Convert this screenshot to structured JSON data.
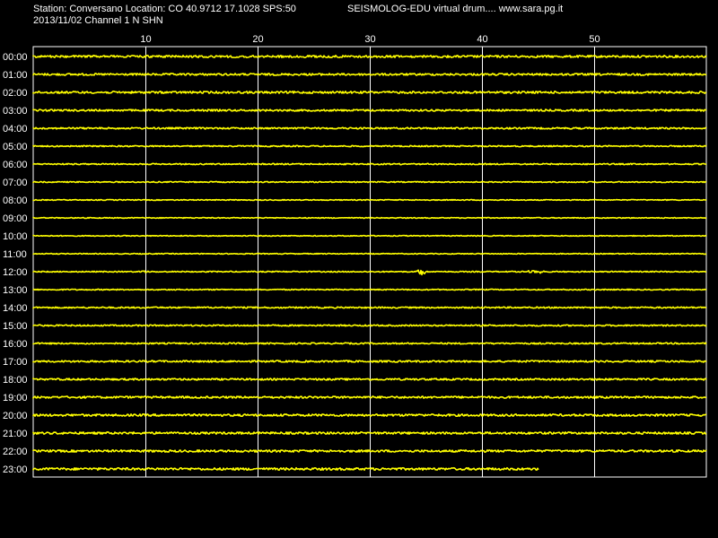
{
  "header": {
    "station_line": "Station: Conversano Location: CO 40.9712 17.1028 SPS:50",
    "date_channel_line": "2013/11/02  Channel 1 N SHN",
    "brand_line": "SEISMOLOG-EDU virtual drum.... www.sara.pg.it"
  },
  "colors": {
    "background": "#000000",
    "trace": "#ffff00",
    "gridline": "#ffffff",
    "text": "#ffffff"
  },
  "chart_data": {
    "type": "line",
    "title": "",
    "xlabel": "",
    "ylabel": "",
    "x_axis": {
      "unit": "minutes",
      "range": [
        0,
        60
      ],
      "ticks": [
        10,
        20,
        30,
        40,
        50
      ],
      "tick_labels": [
        "10",
        "20",
        "30",
        "40",
        "50"
      ]
    },
    "grid": true,
    "rows": [
      {
        "label": "00:00",
        "noise": 1.2,
        "end_minute": 60,
        "events": []
      },
      {
        "label": "01:00",
        "noise": 1.1,
        "end_minute": 60,
        "events": []
      },
      {
        "label": "02:00",
        "noise": 1.2,
        "end_minute": 60,
        "events": []
      },
      {
        "label": "03:00",
        "noise": 1.0,
        "end_minute": 60,
        "events": []
      },
      {
        "label": "04:00",
        "noise": 0.9,
        "end_minute": 60,
        "events": []
      },
      {
        "label": "05:00",
        "noise": 0.7,
        "end_minute": 60,
        "events": []
      },
      {
        "label": "06:00",
        "noise": 0.7,
        "end_minute": 60,
        "events": []
      },
      {
        "label": "07:00",
        "noise": 0.6,
        "end_minute": 60,
        "events": []
      },
      {
        "label": "08:00",
        "noise": 0.5,
        "end_minute": 60,
        "events": []
      },
      {
        "label": "09:00",
        "noise": 0.5,
        "end_minute": 60,
        "events": []
      },
      {
        "label": "10:00",
        "noise": 0.5,
        "end_minute": 60,
        "events": []
      },
      {
        "label": "11:00",
        "noise": 0.5,
        "end_minute": 60,
        "events": []
      },
      {
        "label": "12:00",
        "noise": 0.6,
        "end_minute": 60,
        "events": [
          {
            "minute": 10.0,
            "amplitude": 2.0
          },
          {
            "minute": 34.6,
            "amplitude": 5.0
          },
          {
            "minute": 44.5,
            "amplitude": 2.5
          },
          {
            "minute": 45.3,
            "amplitude": 2.0
          }
        ]
      },
      {
        "label": "13:00",
        "noise": 0.6,
        "end_minute": 60,
        "events": []
      },
      {
        "label": "14:00",
        "noise": 0.8,
        "end_minute": 60,
        "events": []
      },
      {
        "label": "15:00",
        "noise": 0.8,
        "end_minute": 60,
        "events": []
      },
      {
        "label": "16:00",
        "noise": 0.8,
        "end_minute": 60,
        "events": []
      },
      {
        "label": "17:00",
        "noise": 1.0,
        "end_minute": 60,
        "events": []
      },
      {
        "label": "18:00",
        "noise": 1.0,
        "end_minute": 60,
        "events": []
      },
      {
        "label": "19:00",
        "noise": 1.1,
        "end_minute": 60,
        "events": []
      },
      {
        "label": "20:00",
        "noise": 1.2,
        "end_minute": 60,
        "events": []
      },
      {
        "label": "21:00",
        "noise": 1.2,
        "end_minute": 60,
        "events": []
      },
      {
        "label": "22:00",
        "noise": 1.2,
        "end_minute": 60,
        "events": []
      },
      {
        "label": "23:00",
        "noise": 1.3,
        "end_minute": 45.1,
        "events": []
      }
    ]
  }
}
